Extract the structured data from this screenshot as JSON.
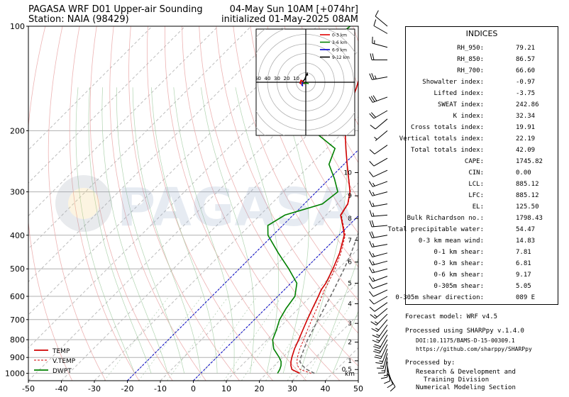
{
  "header": {
    "title_line1": "PAGASA WRF D01 Upper-air Sounding",
    "title_line2": "Station: NAIA (98429)",
    "valid_line": "04-May Sun 10AM [+074hr]",
    "init_line": "initialized 01-May-2025 08AM"
  },
  "watermark": {
    "text": "PAGASA"
  },
  "chart_data": {
    "type": "line",
    "subtype": "skew-t log-p sounding",
    "x_axis": {
      "ticks": [
        -50,
        -40,
        -30,
        -20,
        -10,
        0,
        10,
        20,
        30,
        40,
        50
      ],
      "xlim": [
        -50,
        50
      ]
    },
    "y_axis": {
      "scale": "log",
      "ticks": [
        100,
        200,
        300,
        400,
        500,
        600,
        700,
        800,
        900,
        1000
      ],
      "ylim": [
        1050,
        100
      ]
    },
    "height_scale": {
      "labels": [
        "10",
        "9",
        "8",
        "7",
        "6",
        "5",
        "4",
        "3",
        "2",
        "1",
        "0.5",
        "km"
      ],
      "pressures": [
        264,
        308,
        358,
        414,
        478,
        550,
        630,
        718,
        813,
        920,
        975
      ]
    },
    "grid": true,
    "legend": {
      "placement": "lower-left",
      "entries": [
        {
          "label": "TEMP",
          "color": "#d00000",
          "style": "solid"
        },
        {
          "label": "V.TEMP",
          "color": "#d00000",
          "style": "dashed"
        },
        {
          "label": "DWPT",
          "color": "#008000",
          "style": "solid"
        }
      ]
    },
    "series": [
      {
        "name": "TEMP",
        "color": "#d00000",
        "points": [
          [
            1000,
            30
          ],
          [
            975,
            26.5
          ],
          [
            950,
            25
          ],
          [
            925,
            23.8
          ],
          [
            900,
            22.8
          ],
          [
            850,
            21
          ],
          [
            800,
            19.5
          ],
          [
            750,
            17.8
          ],
          [
            700,
            16
          ],
          [
            650,
            14.2
          ],
          [
            600,
            12.3
          ],
          [
            575,
            11.2
          ],
          [
            550,
            10.6
          ],
          [
            500,
            8.4
          ],
          [
            450,
            5.6
          ],
          [
            400,
            1.6
          ],
          [
            375,
            -1.8
          ],
          [
            350,
            -5.6
          ],
          [
            325,
            -6.8
          ],
          [
            300,
            -9.8
          ],
          [
            275,
            -14.2
          ],
          [
            250,
            -19
          ],
          [
            225,
            -24.2
          ],
          [
            200,
            -29.8
          ],
          [
            175,
            -35
          ],
          [
            150,
            -39.5
          ],
          [
            125,
            -45.5
          ],
          [
            110,
            -47.8
          ],
          [
            100,
            -46
          ]
        ]
      },
      {
        "name": "V.TEMP",
        "color": "#d00000",
        "style": "dashed",
        "points": [
          [
            1000,
            33.5
          ],
          [
            975,
            29
          ],
          [
            950,
            27
          ],
          [
            925,
            25.6
          ],
          [
            900,
            24.5
          ],
          [
            850,
            22.6
          ],
          [
            800,
            21
          ],
          [
            750,
            19.2
          ],
          [
            700,
            17.4
          ],
          [
            650,
            15.5
          ],
          [
            600,
            13.4
          ],
          [
            575,
            12.2
          ],
          [
            550,
            11.3
          ],
          [
            500,
            9
          ],
          [
            450,
            6
          ],
          [
            400,
            1.9
          ],
          [
            375,
            -1.6
          ],
          [
            350,
            -5.4
          ],
          [
            325,
            -6.7
          ],
          [
            300,
            -9.7
          ],
          [
            275,
            -14.1
          ],
          [
            250,
            -19
          ],
          [
            225,
            -24.2
          ],
          [
            200,
            -29.8
          ],
          [
            175,
            -35
          ],
          [
            150,
            -39.5
          ],
          [
            125,
            -45.5
          ],
          [
            110,
            -47.8
          ],
          [
            100,
            -46
          ]
        ]
      },
      {
        "name": "DWPT",
        "color": "#008000",
        "points": [
          [
            1000,
            23.3
          ],
          [
            975,
            22.8
          ],
          [
            950,
            22
          ],
          [
            925,
            20.8
          ],
          [
            900,
            19
          ],
          [
            850,
            14.7
          ],
          [
            800,
            11.6
          ],
          [
            750,
            9.8
          ],
          [
            700,
            7.6
          ],
          [
            650,
            6.2
          ],
          [
            600,
            5.2
          ],
          [
            550,
            1.8
          ],
          [
            500,
            -5
          ],
          [
            450,
            -13
          ],
          [
            400,
            -21.5
          ],
          [
            375,
            -24.5
          ],
          [
            350,
            -22.5
          ],
          [
            325,
            -14.5
          ],
          [
            300,
            -13.5
          ],
          [
            275,
            -18.5
          ],
          [
            250,
            -24.5
          ],
          [
            225,
            -27.5
          ],
          [
            200,
            -39.5
          ],
          [
            175,
            -49
          ],
          [
            150,
            -55.5
          ],
          [
            125,
            -63
          ],
          [
            120,
            -62.5
          ],
          [
            110,
            -61
          ],
          [
            100,
            -60
          ]
        ]
      },
      {
        "name": "Parcel",
        "color": "#707070",
        "style": "dashed",
        "points": [
          [
            1000,
            34.5
          ],
          [
            975,
            31
          ],
          [
            950,
            28.5
          ],
          [
            925,
            26.5
          ],
          [
            900,
            25.5
          ],
          [
            850,
            23.9
          ],
          [
            800,
            22.2
          ],
          [
            750,
            20.8
          ],
          [
            700,
            19.3
          ],
          [
            650,
            17.7
          ],
          [
            600,
            16
          ],
          [
            550,
            14
          ],
          [
            500,
            11.8
          ],
          [
            450,
            9.1
          ],
          [
            400,
            5.7
          ],
          [
            350,
            1.6
          ],
          [
            300,
            -3.8
          ],
          [
            250,
            -11
          ],
          [
            200,
            -21
          ],
          [
            150,
            -34
          ],
          [
            125,
            -43
          ],
          [
            100,
            -44
          ]
        ]
      }
    ],
    "wind_barbs": [
      [
        1000,
        150,
        8
      ],
      [
        975,
        160,
        10
      ],
      [
        950,
        170,
        12
      ],
      [
        925,
        180,
        14
      ],
      [
        900,
        190,
        15
      ],
      [
        875,
        195,
        16
      ],
      [
        850,
        200,
        17
      ],
      [
        825,
        205,
        18
      ],
      [
        800,
        210,
        18
      ],
      [
        775,
        210,
        18
      ],
      [
        750,
        215,
        17
      ],
      [
        725,
        215,
        16
      ],
      [
        700,
        220,
        15
      ],
      [
        675,
        225,
        14
      ],
      [
        650,
        230,
        13
      ],
      [
        625,
        235,
        12
      ],
      [
        600,
        240,
        12
      ],
      [
        575,
        245,
        12
      ],
      [
        550,
        250,
        12
      ],
      [
        525,
        250,
        13
      ],
      [
        500,
        255,
        14
      ],
      [
        475,
        255,
        15
      ],
      [
        450,
        255,
        16
      ],
      [
        425,
        260,
        17
      ],
      [
        400,
        260,
        18
      ],
      [
        375,
        265,
        18
      ],
      [
        350,
        265,
        17
      ],
      [
        325,
        260,
        16
      ],
      [
        300,
        255,
        15
      ],
      [
        280,
        250,
        13
      ],
      [
        260,
        245,
        12
      ],
      [
        240,
        240,
        10
      ],
      [
        220,
        235,
        8
      ],
      [
        200,
        230,
        7
      ],
      [
        185,
        230,
        12
      ],
      [
        175,
        240,
        22
      ],
      [
        160,
        250,
        30
      ],
      [
        140,
        260,
        25
      ],
      [
        125,
        270,
        20
      ],
      [
        115,
        285,
        15
      ],
      [
        105,
        300,
        12
      ],
      [
        100,
        310,
        10
      ]
    ],
    "hodograph": {
      "range_labels": [
        "50",
        "40",
        "30",
        "20",
        "10"
      ],
      "legend": [
        {
          "label": "0-3 km",
          "color": "#e00000"
        },
        {
          "label": "3-6 km",
          "color": "#008000"
        },
        {
          "label": "6-9 km",
          "color": "#0000cc"
        },
        {
          "label": "9-12 km",
          "color": "#000000"
        }
      ],
      "segments": [
        {
          "name": "0-3 km",
          "color": "#e00000",
          "points": [
            [
              -1,
              -2
            ],
            [
              -3,
              1
            ],
            [
              -5,
              2
            ],
            [
              -6,
              -1
            ],
            [
              -4,
              -2
            ]
          ]
        },
        {
          "name": "3-6 km",
          "color": "#008000",
          "points": [
            [
              -4,
              -2
            ],
            [
              -2,
              -1
            ],
            [
              1,
              -1
            ],
            [
              3,
              -1.5
            ]
          ]
        },
        {
          "name": "6-9 km",
          "color": "#0000cc",
          "points": [
            [
              -3,
              0
            ],
            [
              -4,
              -3
            ],
            [
              -3,
              -4
            ]
          ]
        },
        {
          "name": "9-12 km",
          "color": "#000000",
          "points": [
            [
              -3,
              1
            ],
            [
              -1,
              3
            ],
            [
              0,
              6
            ],
            [
              1,
              8
            ],
            [
              1.5,
              9
            ],
            [
              2,
              7
            ]
          ]
        }
      ]
    }
  },
  "indices": {
    "title": "INDICES",
    "rows": [
      {
        "label": "RH_950:",
        "value": "79.21"
      },
      {
        "label": "RH_850:",
        "value": "86.57"
      },
      {
        "label": "RH_700:",
        "value": "66.60"
      },
      {
        "label": "Showalter index:",
        "value": "-0.97"
      },
      {
        "label": "Lifted index:",
        "value": "-3.75"
      },
      {
        "label": "SWEAT index:",
        "value": "242.86"
      },
      {
        "label": "K index:",
        "value": "32.34"
      },
      {
        "label": "Cross totals index:",
        "value": "19.91"
      },
      {
        "label": "Vertical totals index:",
        "value": "22.19"
      },
      {
        "label": "Total totals index:",
        "value": "42.09"
      },
      {
        "label": "CAPE:",
        "value": "1745.82"
      },
      {
        "label": "CIN:",
        "value": "0.00"
      },
      {
        "label": "LCL:",
        "value": "885.12"
      },
      {
        "label": "LFC:",
        "value": "885.12"
      },
      {
        "label": "EL:",
        "value": "125.50"
      },
      {
        "label": "Bulk Richardson no.:",
        "value": "1798.43"
      },
      {
        "label": "Total precipitable water:",
        "value": "54.47"
      },
      {
        "label": "0-3 km mean wind:",
        "value": "14.83"
      },
      {
        "label": "0-1 km shear:",
        "value": "7.81"
      },
      {
        "label": "0-3 km shear:",
        "value": "6.81"
      },
      {
        "label": "0-6 km shear:",
        "value": "9.17"
      },
      {
        "label": "0-305m shear:",
        "value": "5.05"
      },
      {
        "label": "0-305m shear direction:",
        "value": "089 E"
      }
    ]
  },
  "footer": {
    "model": "Forecast model: WRF v4.5",
    "processed": "Processed using SHARPpy v.1.4.0",
    "doi": "DOI:10.1175/BAMS-D-15-00309.1",
    "url": "https://github.com/sharppy/SHARPpy",
    "processed_by": "Processed by:",
    "org1": "Research & Development and",
    "org2": "Training Division",
    "org3": "Numerical Modeling Section"
  }
}
